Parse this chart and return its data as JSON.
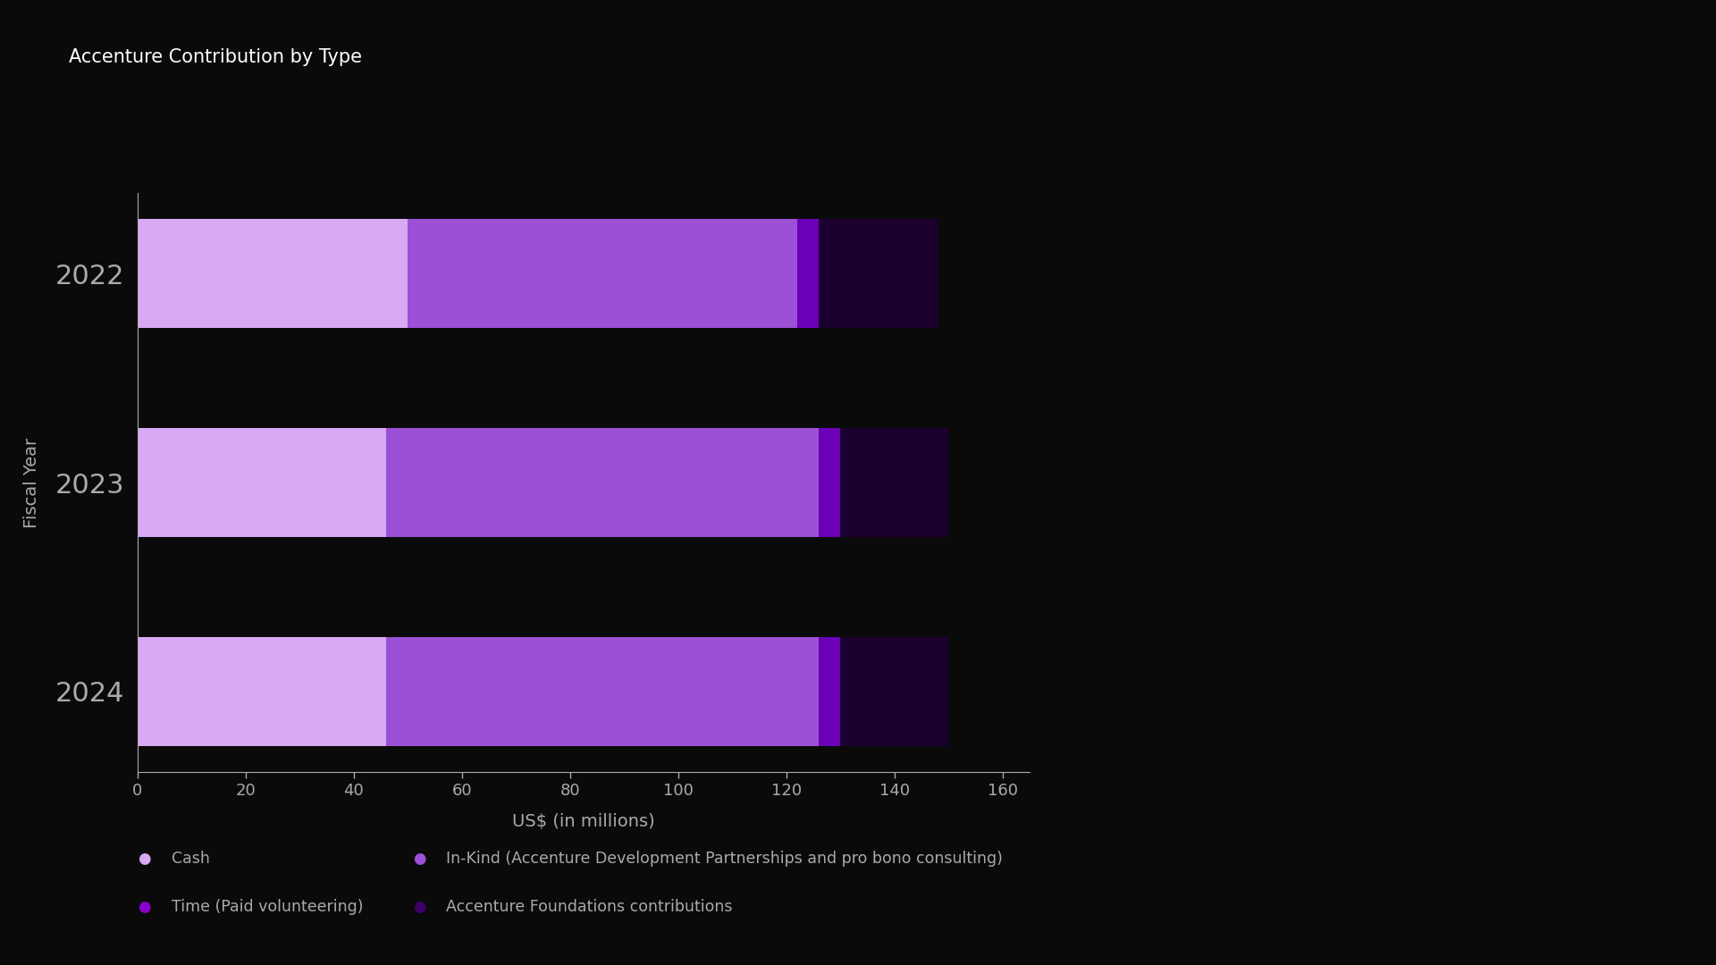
{
  "title": "Accenture Contribution by Type",
  "years": [
    "2024",
    "2023",
    "2022"
  ],
  "segments": {
    "Cash": {
      "values": [
        46,
        46,
        50
      ],
      "color": "#D9A9F5"
    },
    "In-Kind": {
      "values": [
        80,
        80,
        72
      ],
      "color": "#9B50D6"
    },
    "Time": {
      "values": [
        4,
        4,
        4
      ],
      "color": "#6B00B8"
    },
    "Foundations": {
      "values": [
        20,
        20,
        22
      ],
      "color": "#1C0030"
    }
  },
  "xlabel": "US$ (in millions)",
  "ylabel": "Fiscal Year",
  "xlim": [
    0,
    165
  ],
  "xticks": [
    0,
    20,
    40,
    60,
    80,
    100,
    120,
    140,
    160
  ],
  "background_color": "#0a0a0a",
  "text_color": "#AAAAAA",
  "legend_labels": [
    "Cash",
    "In-Kind (Accenture Development Partnerships and pro bono consulting)",
    "Time (Paid volunteering)",
    "Accenture Foundations contributions"
  ],
  "legend_colors": [
    "#D9A9F5",
    "#9B50D6",
    "#8B00CC",
    "#3D0066"
  ],
  "title_fontsize": 15,
  "axis_label_fontsize": 14,
  "tick_fontsize": 13,
  "year_fontsize": 22,
  "bar_height": 0.52
}
